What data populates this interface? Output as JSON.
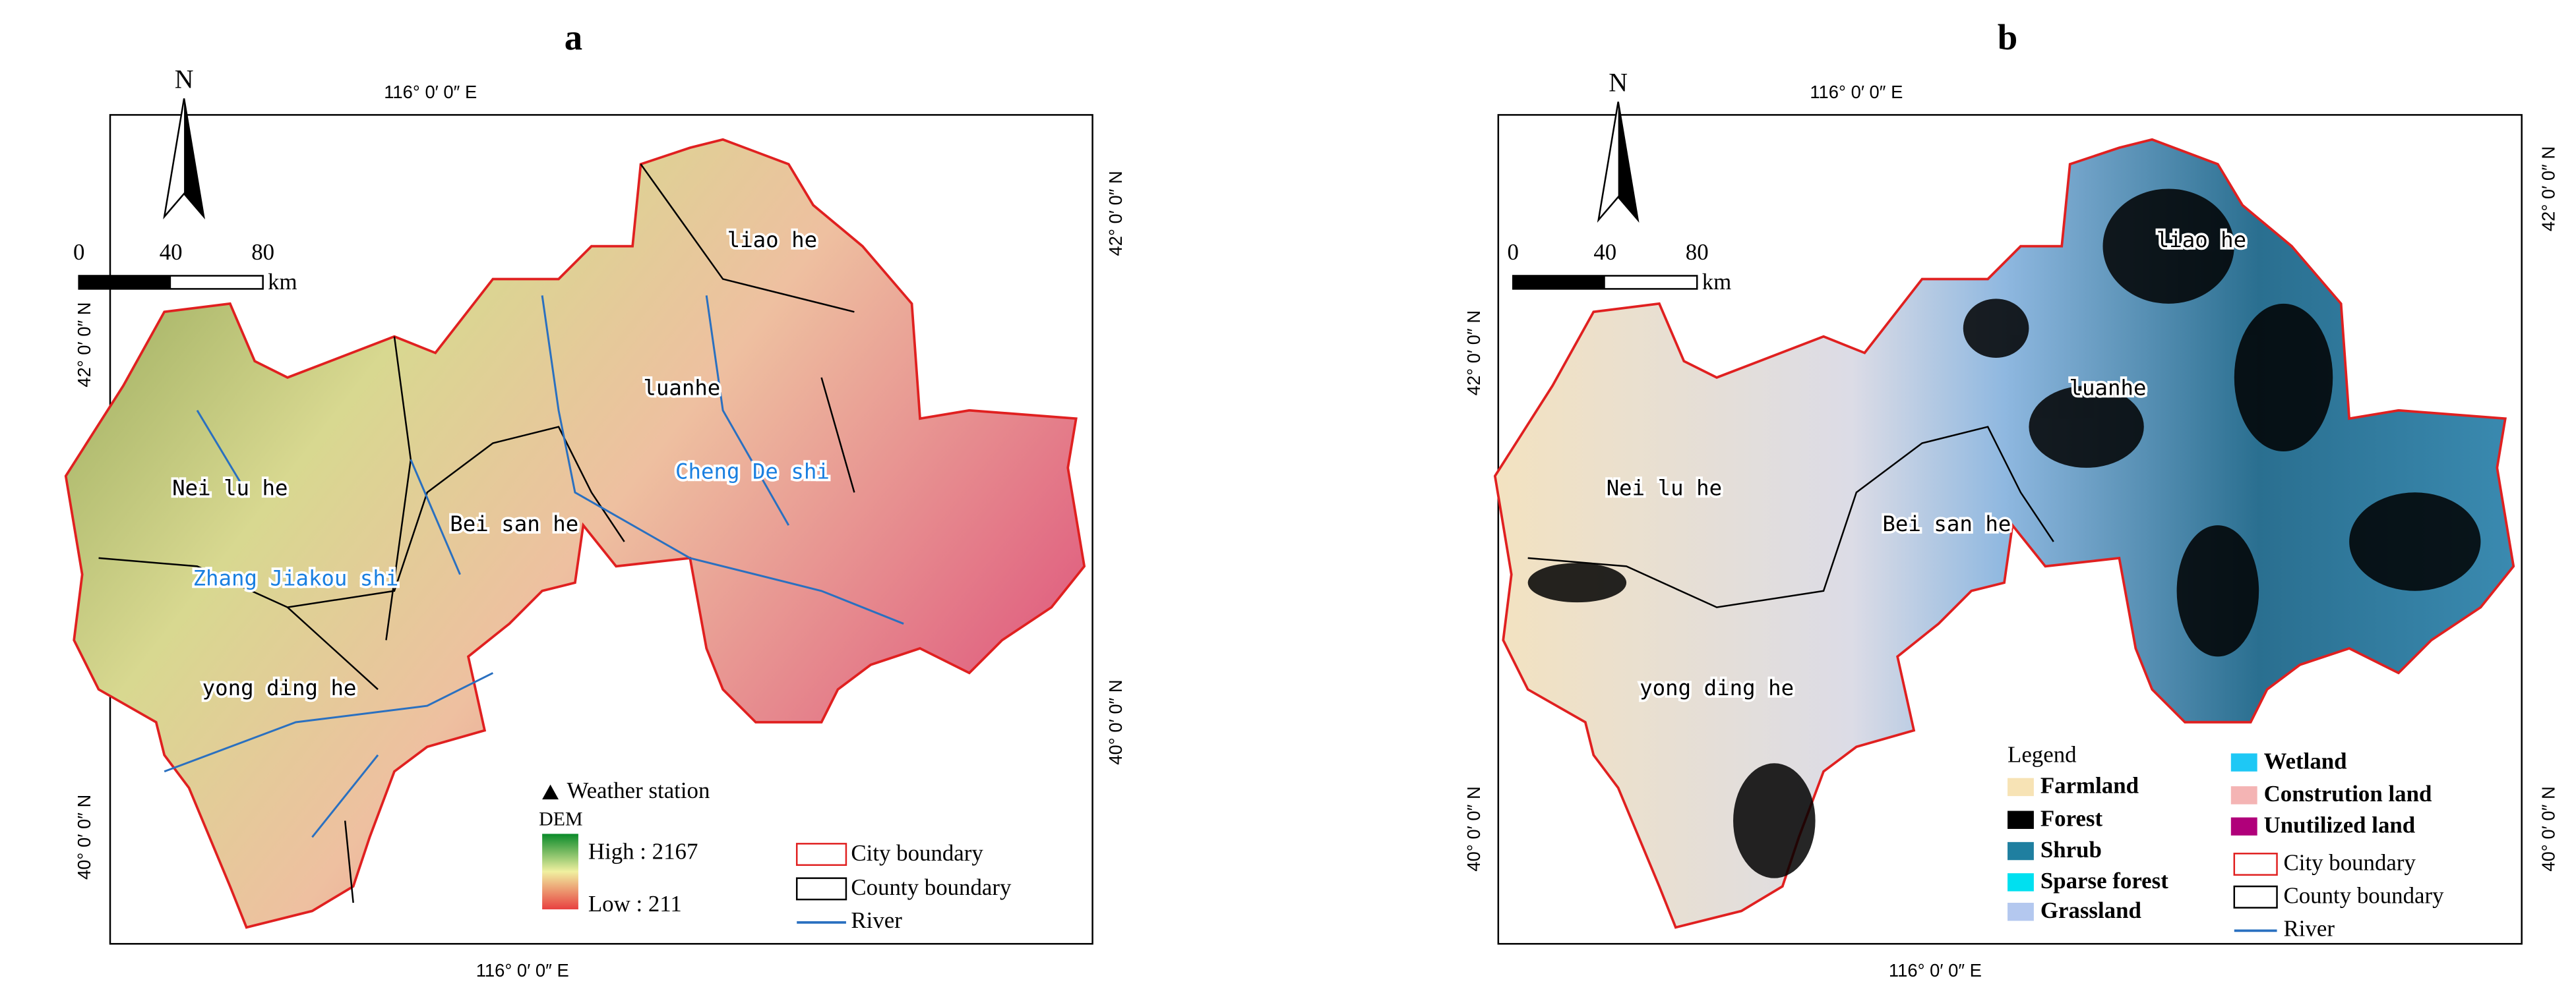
{
  "panels": [
    {
      "label": "a",
      "top_lon": "116° 0′ 0″ E",
      "bottom_lon": "116° 0′ 0″ E",
      "left_lats": [
        "42° 0′ 0″ N",
        "40° 0′ 0″ N"
      ],
      "right_lats": [
        "42° 0′ 0″ N",
        "40° 0′ 0″ N"
      ],
      "north": "N",
      "scale": {
        "ticks": [
          0,
          40,
          80
        ],
        "unit": "km"
      },
      "places": [
        "liao he",
        "luanhe",
        "Cheng De shi",
        "Nei lu he",
        "Bei san he",
        "Zhang Jiakou shi",
        "yong ding he"
      ],
      "legend": {
        "station": "Weather station",
        "dem": "DEM",
        "high": "High : 2167",
        "low": "Low : 211",
        "city": "City boundary",
        "county": "County boundary",
        "river": "River"
      }
    },
    {
      "label": "b",
      "top_lon": "116° 0′ 0″ E",
      "bottom_lon": "116° 0′ 0″ E",
      "left_lats": [
        "42° 0′ 0″ N",
        "40° 0′ 0″ N"
      ],
      "right_lats": [
        "42° 0′ 0″ N",
        "40° 0′ 0″ N"
      ],
      "north": "N",
      "scale": {
        "ticks": [
          0,
          40,
          80
        ],
        "unit": "km"
      },
      "places": [
        "liao he",
        "luanhe",
        "Nei lu he",
        "Bei san he",
        "yong ding he"
      ],
      "legend": {
        "title": "Legend",
        "classes": [
          "Farmland",
          "Forest",
          "Shrub",
          "Sparse forest",
          "Grassland",
          "Wetland",
          "Constrution land",
          "Unutilized land"
        ],
        "city": "City boundary",
        "county": "County boundary",
        "river": "River"
      }
    }
  ]
}
